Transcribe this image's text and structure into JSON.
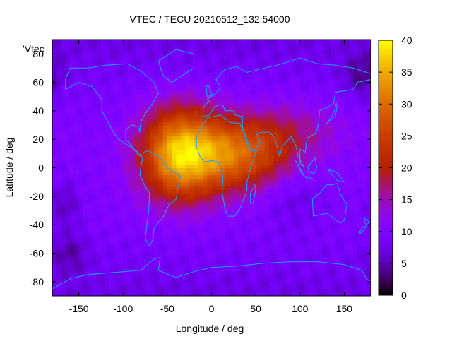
{
  "chart_data": {
    "type": "heatmap",
    "title": "VTEC / TECU 20210512_132.54000",
    "xlabel": "Longitude / deg",
    "ylabel": "Latitude / deg",
    "key_label": "'Vtec_",
    "xlim": [
      -180,
      180
    ],
    "ylim": [
      -90,
      90
    ],
    "x_ticks": [
      -150,
      -100,
      -50,
      0,
      50,
      100,
      150
    ],
    "y_ticks": [
      -80,
      -60,
      -40,
      -20,
      0,
      20,
      40,
      60,
      80
    ],
    "colorbar": {
      "min": 0,
      "max": 40,
      "ticks": [
        0,
        5,
        10,
        15,
        20,
        25,
        30,
        35,
        40
      ]
    },
    "features": [
      {
        "lon": -35,
        "lat": 10,
        "sigma_lon": 30,
        "sigma_lat": 22,
        "amp": 28
      },
      {
        "lon": 15,
        "lat": 10,
        "sigma_lon": 25,
        "sigma_lat": 18,
        "amp": 12
      },
      {
        "lon": 55,
        "lat": 10,
        "sigma_lon": 30,
        "sigma_lat": 18,
        "amp": 11
      },
      {
        "lon": 95,
        "lat": 25,
        "sigma_lon": 40,
        "sigma_lat": 15,
        "amp": 5
      },
      {
        "lon": 90,
        "lat": -20,
        "sigma_lon": 25,
        "sigma_lat": 15,
        "amp": -3
      },
      {
        "lon": -165,
        "lat": -25,
        "sigma_lon": 12,
        "sigma_lat": 12,
        "amp": -4
      },
      {
        "lon": 170,
        "lat": 65,
        "sigma_lon": 15,
        "sigma_lat": 10,
        "amp": -5
      },
      {
        "lon": -160,
        "lat": -60,
        "sigma_lon": 15,
        "sigma_lat": 10,
        "amp": -4
      }
    ],
    "background_value": 10,
    "colormap": "black-purple-red-orange-yellow (gnuplot)",
    "coastline_color": "#1ea0ff"
  }
}
